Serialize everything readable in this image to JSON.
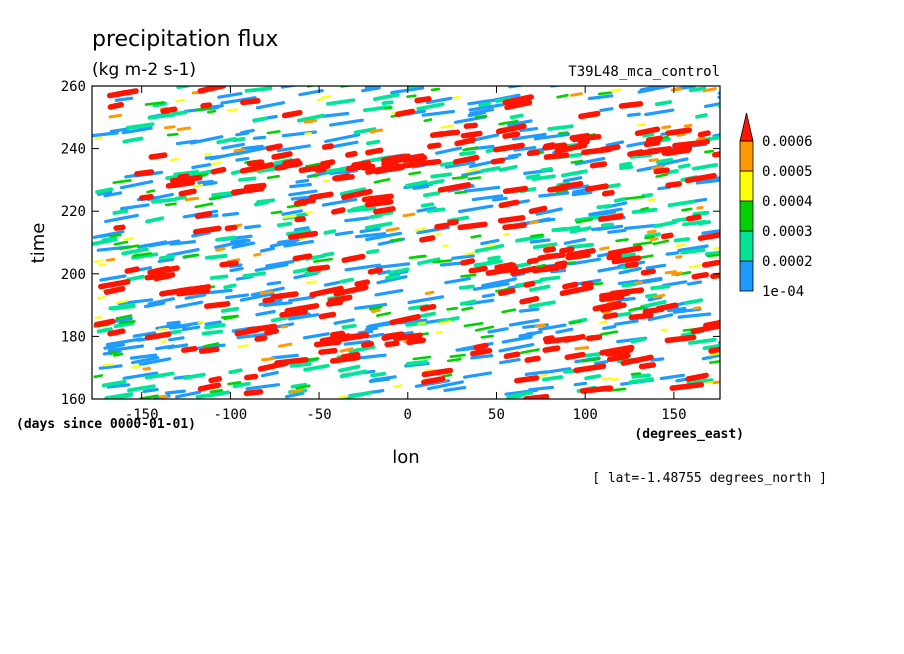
{
  "chart_data": {
    "type": "heatmap",
    "title": "precipitation flux",
    "units": "(kg m-2 s-1)",
    "experiment": "T39L48_mca_control",
    "xlabel": "lon",
    "ylabel": "time",
    "x_units": "(degrees_east)",
    "y_units": "(days since 0000-01-01)",
    "footnote": "[ lat=-1.48755 degrees_north ]",
    "xlim": [
      -178,
      176
    ],
    "ylim": [
      160,
      260
    ],
    "x_ticks": [
      -150,
      -100,
      -50,
      0,
      50,
      100,
      150
    ],
    "y_ticks": [
      160,
      180,
      200,
      220,
      240,
      260
    ],
    "x_tick_labels": [
      "-150",
      "-100",
      "-50",
      "0",
      "50",
      "100",
      "150"
    ],
    "y_tick_labels": [
      "160",
      "180",
      "200",
      "220",
      "240",
      "260"
    ],
    "colorbar": {
      "levels": [
        0.0001,
        0.0002,
        0.0003,
        0.0004,
        0.0005,
        0.0006
      ],
      "labels": [
        "1e-04",
        "0.0002",
        "0.0003",
        "0.0004",
        "0.0005",
        "0.0006"
      ],
      "colors": [
        "#1e9bff",
        "#00e696",
        "#00d200",
        "#ffff00",
        "#ff9900",
        "#ff1400"
      ],
      "over_color": "#ff1400"
    },
    "grid": false
  }
}
